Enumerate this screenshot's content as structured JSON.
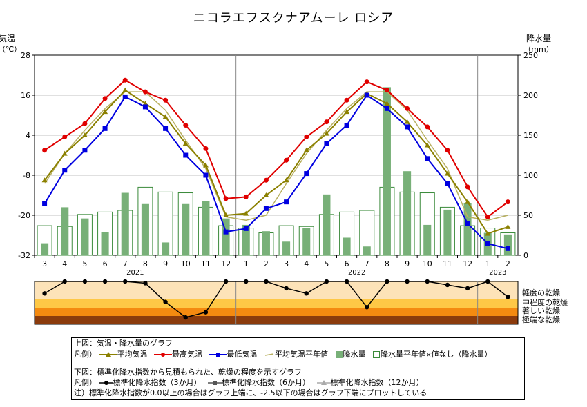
{
  "title": "ニコラエフスクナアムーレ ロシア",
  "left_axis_label": [
    "気温",
    "（℃）"
  ],
  "right_axis_label": [
    "降水量",
    "（mm）"
  ],
  "colors": {
    "avg_temp": "#8b8000",
    "max_temp": "#e00000",
    "min_temp": "#0000e0",
    "normal_temp": "#b8b060",
    "precip": "#78b078",
    "grid": "#c0c0c0",
    "band_light": "#fde3b8",
    "band_medium": "#fec846",
    "band_severe": "#f48a10",
    "band_extreme": "#8b3b0c"
  },
  "chart_data": {
    "type": "line",
    "x": [
      "3",
      "4",
      "5",
      "6",
      "7",
      "8",
      "9",
      "10",
      "11",
      "12",
      "1",
      "2",
      "3",
      "4",
      "5",
      "6",
      "7",
      "8",
      "9",
      "10",
      "11",
      "12",
      "1",
      "2"
    ],
    "year_labels": [
      "2021",
      "2022",
      "2023"
    ],
    "ylim_temp": [
      -32,
      28
    ],
    "yticks_temp": [
      28,
      16,
      4,
      -8,
      -20,
      -32
    ],
    "ylim_precip": [
      0,
      250
    ],
    "yticks_precip": [
      250,
      200,
      150,
      100,
      50,
      0
    ],
    "series": [
      {
        "name": "最高気温",
        "values": [
          -0.5,
          3.5,
          7.5,
          15,
          20.5,
          17,
          14.5,
          7,
          0,
          -15,
          -14.5,
          -9.5,
          -3.5,
          3.5,
          8,
          14.5,
          20,
          17.5,
          12,
          6.5,
          -0.5,
          -11.5,
          -20.5,
          -16
        ]
      },
      {
        "name": "平均気温",
        "values": [
          -9.5,
          -1.5,
          4,
          11,
          17.5,
          13.5,
          9.5,
          1.5,
          -5,
          -20,
          -19.5,
          -14,
          -9.5,
          -0.5,
          4.5,
          11,
          16.5,
          13.5,
          8,
          1,
          -7.5,
          -16,
          -25.5,
          -23.5
        ]
      },
      {
        "name": "最低気温",
        "values": [
          -16.5,
          -6.5,
          -0.5,
          6,
          15.5,
          12.5,
          6,
          -2,
          -8,
          -25,
          -24,
          -18,
          -16,
          -7.5,
          1.5,
          7,
          16,
          12,
          6.5,
          -3,
          -10.5,
          -22.5,
          -28.5,
          -30
        ]
      },
      {
        "name": "平均気温平年値",
        "values": [
          -10.5,
          -1.5,
          5.5,
          12,
          17,
          17,
          11.5,
          2.5,
          -6,
          -20.5,
          -21.5,
          -20,
          -10.5,
          -1.5,
          5.5,
          12,
          17,
          17,
          11.5,
          2.5,
          -6,
          -20.5,
          -21.5,
          -20
        ]
      },
      {
        "name": "降水量",
        "values": [
          15,
          60,
          46,
          29,
          78,
          64,
          16,
          64,
          68,
          46,
          38,
          30,
          17,
          34,
          76,
          22,
          11,
          210,
          105,
          38,
          57,
          65,
          28,
          26
        ]
      },
      {
        "name": "降水量平年値",
        "values": [
          37,
          36,
          51,
          54,
          56,
          85,
          79,
          78,
          60,
          37,
          34,
          28,
          37,
          36,
          51,
          54,
          56,
          85,
          79,
          78,
          60,
          37,
          34,
          28
        ]
      },
      {
        "name": "標準化降水指数（3か月）",
        "values": [
          -0.7,
          0,
          0,
          0,
          0,
          -0.1,
          -1.2,
          -2.1,
          -1.8,
          0,
          0,
          0,
          -0.4,
          -0.7,
          0,
          0,
          -1.5,
          0,
          0,
          0,
          -0.2,
          -0.4,
          0,
          -0.9
        ]
      }
    ],
    "drought_bands": [
      "軽度の乾燥",
      "中程度の乾燥",
      "著しい乾燥",
      "極端な乾燥"
    ]
  },
  "legend": {
    "upper_title": "上図：気温・降水量のグラフ",
    "upper_prefix": "凡例）",
    "avg_temp": "平均気温",
    "max_temp": "最高気温",
    "min_temp": "最低気温",
    "normal_temp": "平均気温平年値",
    "precip": "降水量",
    "precip_normal": "降水量平年値",
    "missing_mark": "×",
    "missing_text": "値なし（降水量）",
    "lower_title": "下図：標準化降水指数から見積もられた、乾燥の程度を示すグラフ",
    "lower_prefix": "凡例）",
    "spi3": "標準化降水指数（3か月）",
    "spi6": "標準化降水指数（6か月）",
    "spi12": "標準化降水指数（12か月）",
    "note": "注）標準化降水指数が0.0以上の場合はグラフ上端に、-2.5以下の場合はグラフ下端にプロットしている"
  }
}
